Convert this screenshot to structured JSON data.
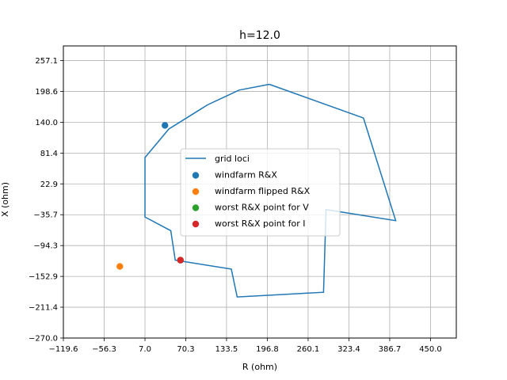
{
  "chart_data": {
    "type": "scatter",
    "title": "h=12.0",
    "xlabel": "R (ohm)",
    "ylabel": "X (ohm)",
    "xlim": [
      -119.6,
      490
    ],
    "ylim": [
      -270.0,
      285
    ],
    "xticks": [
      "−119.6",
      "−56.3",
      "7.0",
      "70.3",
      "133.5",
      "196.8",
      "260.1",
      "323.4",
      "386.7",
      "450.0"
    ],
    "xtick_values": [
      -119.6,
      -56.3,
      7.0,
      70.3,
      133.5,
      196.8,
      260.1,
      323.4,
      386.7,
      450.0
    ],
    "yticks": [
      "−270.0",
      "−211.4",
      "−152.9",
      "−94.3",
      "−35.7",
      "22.9",
      "81.4",
      "140.0",
      "198.6",
      "257.1"
    ],
    "ytick_values": [
      -270.0,
      -211.4,
      -152.9,
      -94.3,
      -35.7,
      22.9,
      81.4,
      140.0,
      198.6,
      257.1
    ],
    "grid": true,
    "legend_position": "center",
    "series": [
      {
        "name": "grid loci",
        "kind": "line",
        "color": "#1f77b4",
        "points": [
          [
            200,
            212
          ],
          [
            346,
            148
          ],
          [
            396,
            -47
          ],
          [
            288,
            -26
          ],
          [
            284,
            -183
          ],
          [
            150,
            -192
          ],
          [
            141,
            -139
          ],
          [
            54,
            -122
          ],
          [
            47,
            -66
          ],
          [
            7,
            -40
          ],
          [
            7,
            73
          ],
          [
            44,
            127
          ],
          [
            104,
            173
          ],
          [
            153,
            201
          ],
          [
            200,
            212
          ]
        ]
      },
      {
        "name": "windfarm R&X",
        "kind": "scatter",
        "color": "#1f77b4",
        "points": [
          [
            38,
            134
          ]
        ]
      },
      {
        "name": "windfarm flipped R&X",
        "kind": "scatter",
        "color": "#ff7f0e",
        "points": [
          [
            -32,
            -134
          ]
        ]
      },
      {
        "name": "worst R&X point for V",
        "kind": "scatter",
        "color": "#2ca02c",
        "points": [
          [
            62,
            -122
          ]
        ]
      },
      {
        "name": "worst R&X point for I",
        "kind": "scatter",
        "color": "#d62728",
        "points": [
          [
            62,
            -122
          ]
        ]
      }
    ]
  }
}
